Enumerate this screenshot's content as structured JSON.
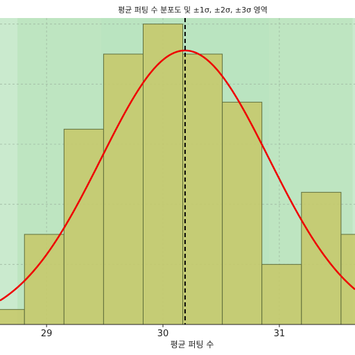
{
  "chart_data": {
    "type": "bar",
    "title": "평균 퍼팅 수 분포도 및 ±1σ, ±2σ, ±3σ 영역",
    "xlabel": "평균 퍼팅 수",
    "ylabel": "",
    "xlim": [
      28.6,
      31.65
    ],
    "ylim": [
      0,
      5.1
    ],
    "x_ticks": [
      29,
      30,
      31
    ],
    "x_tick_labels": [
      "29",
      "30",
      "31"
    ],
    "grid": true,
    "bins": [
      {
        "x0": 28.47,
        "x1": 28.81,
        "count": 0.25
      },
      {
        "x0": 28.81,
        "x1": 29.15,
        "count": 1.5
      },
      {
        "x0": 29.15,
        "x1": 29.49,
        "count": 3.25
      },
      {
        "x0": 29.49,
        "x1": 29.83,
        "count": 4.5
      },
      {
        "x0": 29.83,
        "x1": 30.17,
        "count": 5.0
      },
      {
        "x0": 30.17,
        "x1": 30.51,
        "count": 4.5
      },
      {
        "x0": 30.51,
        "x1": 30.85,
        "count": 3.7
      },
      {
        "x0": 30.85,
        "x1": 31.19,
        "count": 1.0
      },
      {
        "x0": 31.19,
        "x1": 31.53,
        "count": 2.2
      },
      {
        "x0": 31.53,
        "x1": 31.87,
        "count": 1.5
      }
    ],
    "normal_curve": {
      "mean": 30.19,
      "sd": 0.72,
      "peak": 4.56
    },
    "mean_line": 30.19,
    "sigma_regions": [
      {
        "level": "±3σ",
        "x0": 28.03,
        "x1": 32.35,
        "color": "#9fd8a6",
        "opacity": 0.55
      },
      {
        "level": "±2σ",
        "x0": 28.75,
        "x1": 31.63,
        "color": "#a8dcaa",
        "opacity": 0.35
      },
      {
        "level": "±1σ",
        "x0": 29.47,
        "x1": 30.91,
        "color": "#b6e3bf",
        "opacity": 0.45
      }
    ],
    "colors": {
      "bar_fill": "#c6c86a",
      "bar_edge": "#5f6e3c",
      "curve": "#ee0000",
      "mean_line": "#000000",
      "grid": "#9fb8a2"
    }
  }
}
